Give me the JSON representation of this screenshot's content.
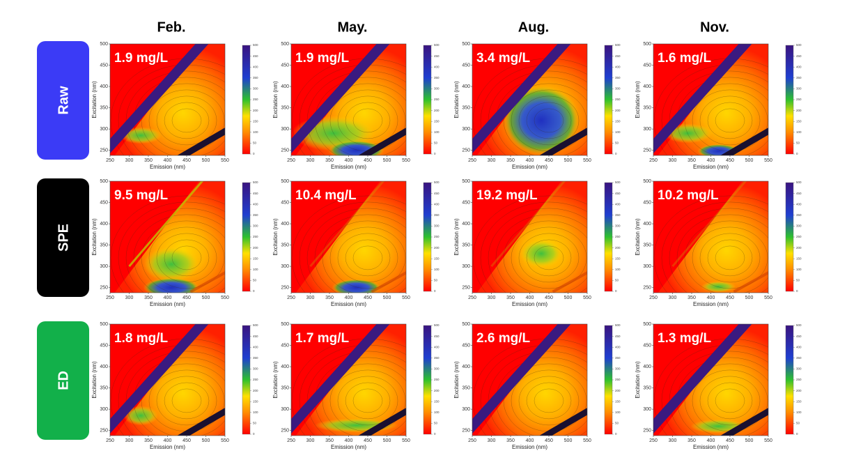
{
  "columns": [
    "Feb.",
    "May.",
    "Aug.",
    "Nov."
  ],
  "rows": [
    {
      "label": "Raw",
      "color": "#3b3bf6",
      "panels": [
        {
          "annotation": "1.9 mg/L"
        },
        {
          "annotation": "1.9 mg/L"
        },
        {
          "annotation": "3.4 mg/L"
        },
        {
          "annotation": "1.6 mg/L"
        }
      ]
    },
    {
      "label": "SPE",
      "color": "#000000",
      "panels": [
        {
          "annotation": "9.5 mg/L"
        },
        {
          "annotation": "10.4 mg/L"
        },
        {
          "annotation": "19.2 mg/L"
        },
        {
          "annotation": "10.2 mg/L"
        }
      ]
    },
    {
      "label": "ED",
      "color": "#12b04a",
      "panels": [
        {
          "annotation": "1.8 mg/L"
        },
        {
          "annotation": "1.7 mg/L"
        },
        {
          "annotation": "2.6 mg/L"
        },
        {
          "annotation": "1.3 mg/L"
        }
      ]
    }
  ],
  "axes": {
    "x_label": "Emission (nm)",
    "y_label": "Excitation (nm)",
    "xlim": [
      250,
      550
    ],
    "xticks": [
      250,
      300,
      350,
      400,
      450,
      500,
      550
    ],
    "ylim": [
      238,
      500
    ],
    "yticks": [
      250,
      300,
      350,
      400,
      450,
      500
    ]
  },
  "colorbar": {
    "ticks": [
      0,
      50,
      100,
      150,
      200,
      250,
      300,
      350,
      400,
      450,
      500
    ]
  }
}
